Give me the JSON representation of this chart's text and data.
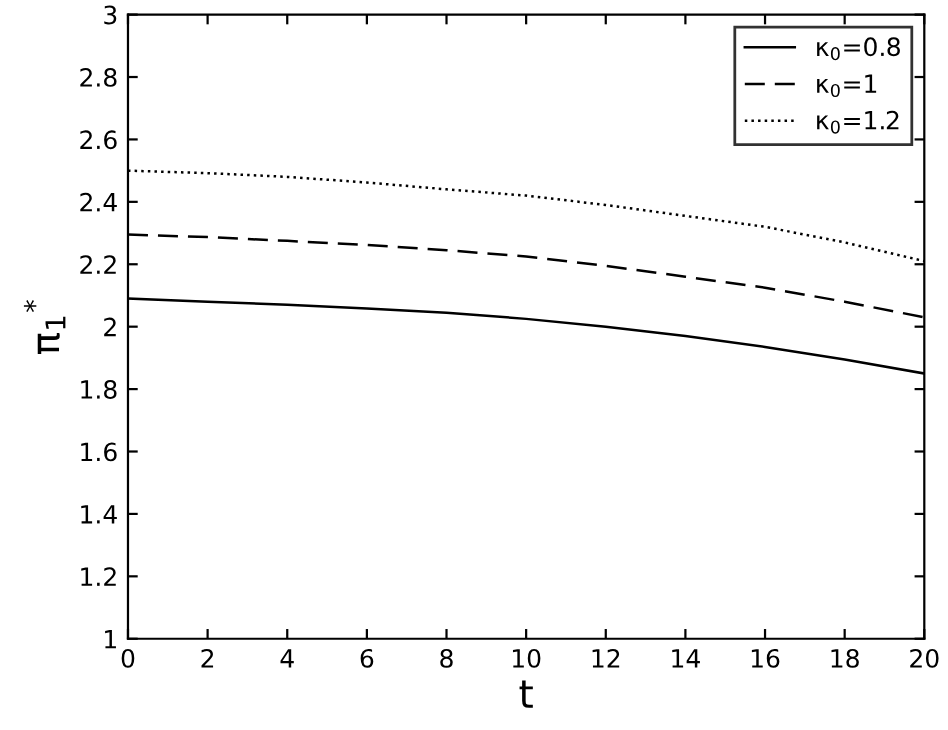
{
  "chart_data": {
    "type": "line",
    "xlabel": "t",
    "ylabel": "π$_{1}$$^{*}$",
    "x": [
      0,
      2,
      4,
      6,
      8,
      10,
      12,
      14,
      16,
      18,
      20
    ],
    "series": [
      {
        "name": "κ$_{0}$=0.8",
        "color": "#000000",
        "line_style": "solid",
        "values": [
          2.09,
          2.08,
          2.07,
          2.058,
          2.045,
          2.025,
          2.0,
          1.97,
          1.935,
          1.895,
          1.85
        ]
      },
      {
        "name": "κ$_{0}$=1",
        "color": "#000000",
        "line_style": "dashed",
        "values": [
          2.295,
          2.287,
          2.275,
          2.262,
          2.245,
          2.225,
          2.195,
          2.16,
          2.125,
          2.08,
          2.03
        ]
      },
      {
        "name": "κ$_{0}$=1.2",
        "color": "#000000",
        "line_style": "dotted",
        "values": [
          2.5,
          2.492,
          2.48,
          2.462,
          2.44,
          2.42,
          2.39,
          2.355,
          2.32,
          2.27,
          2.21
        ]
      }
    ],
    "xlim": [
      0,
      20
    ],
    "ylim": [
      1,
      3
    ],
    "xticks": [
      0,
      2,
      4,
      6,
      8,
      10,
      12,
      14,
      16,
      18,
      20
    ],
    "yticks": [
      1,
      1.2,
      1.4,
      1.6,
      1.8,
      2,
      2.2,
      2.4,
      2.6,
      2.8,
      3
    ],
    "grid": false,
    "legend": "top right"
  }
}
